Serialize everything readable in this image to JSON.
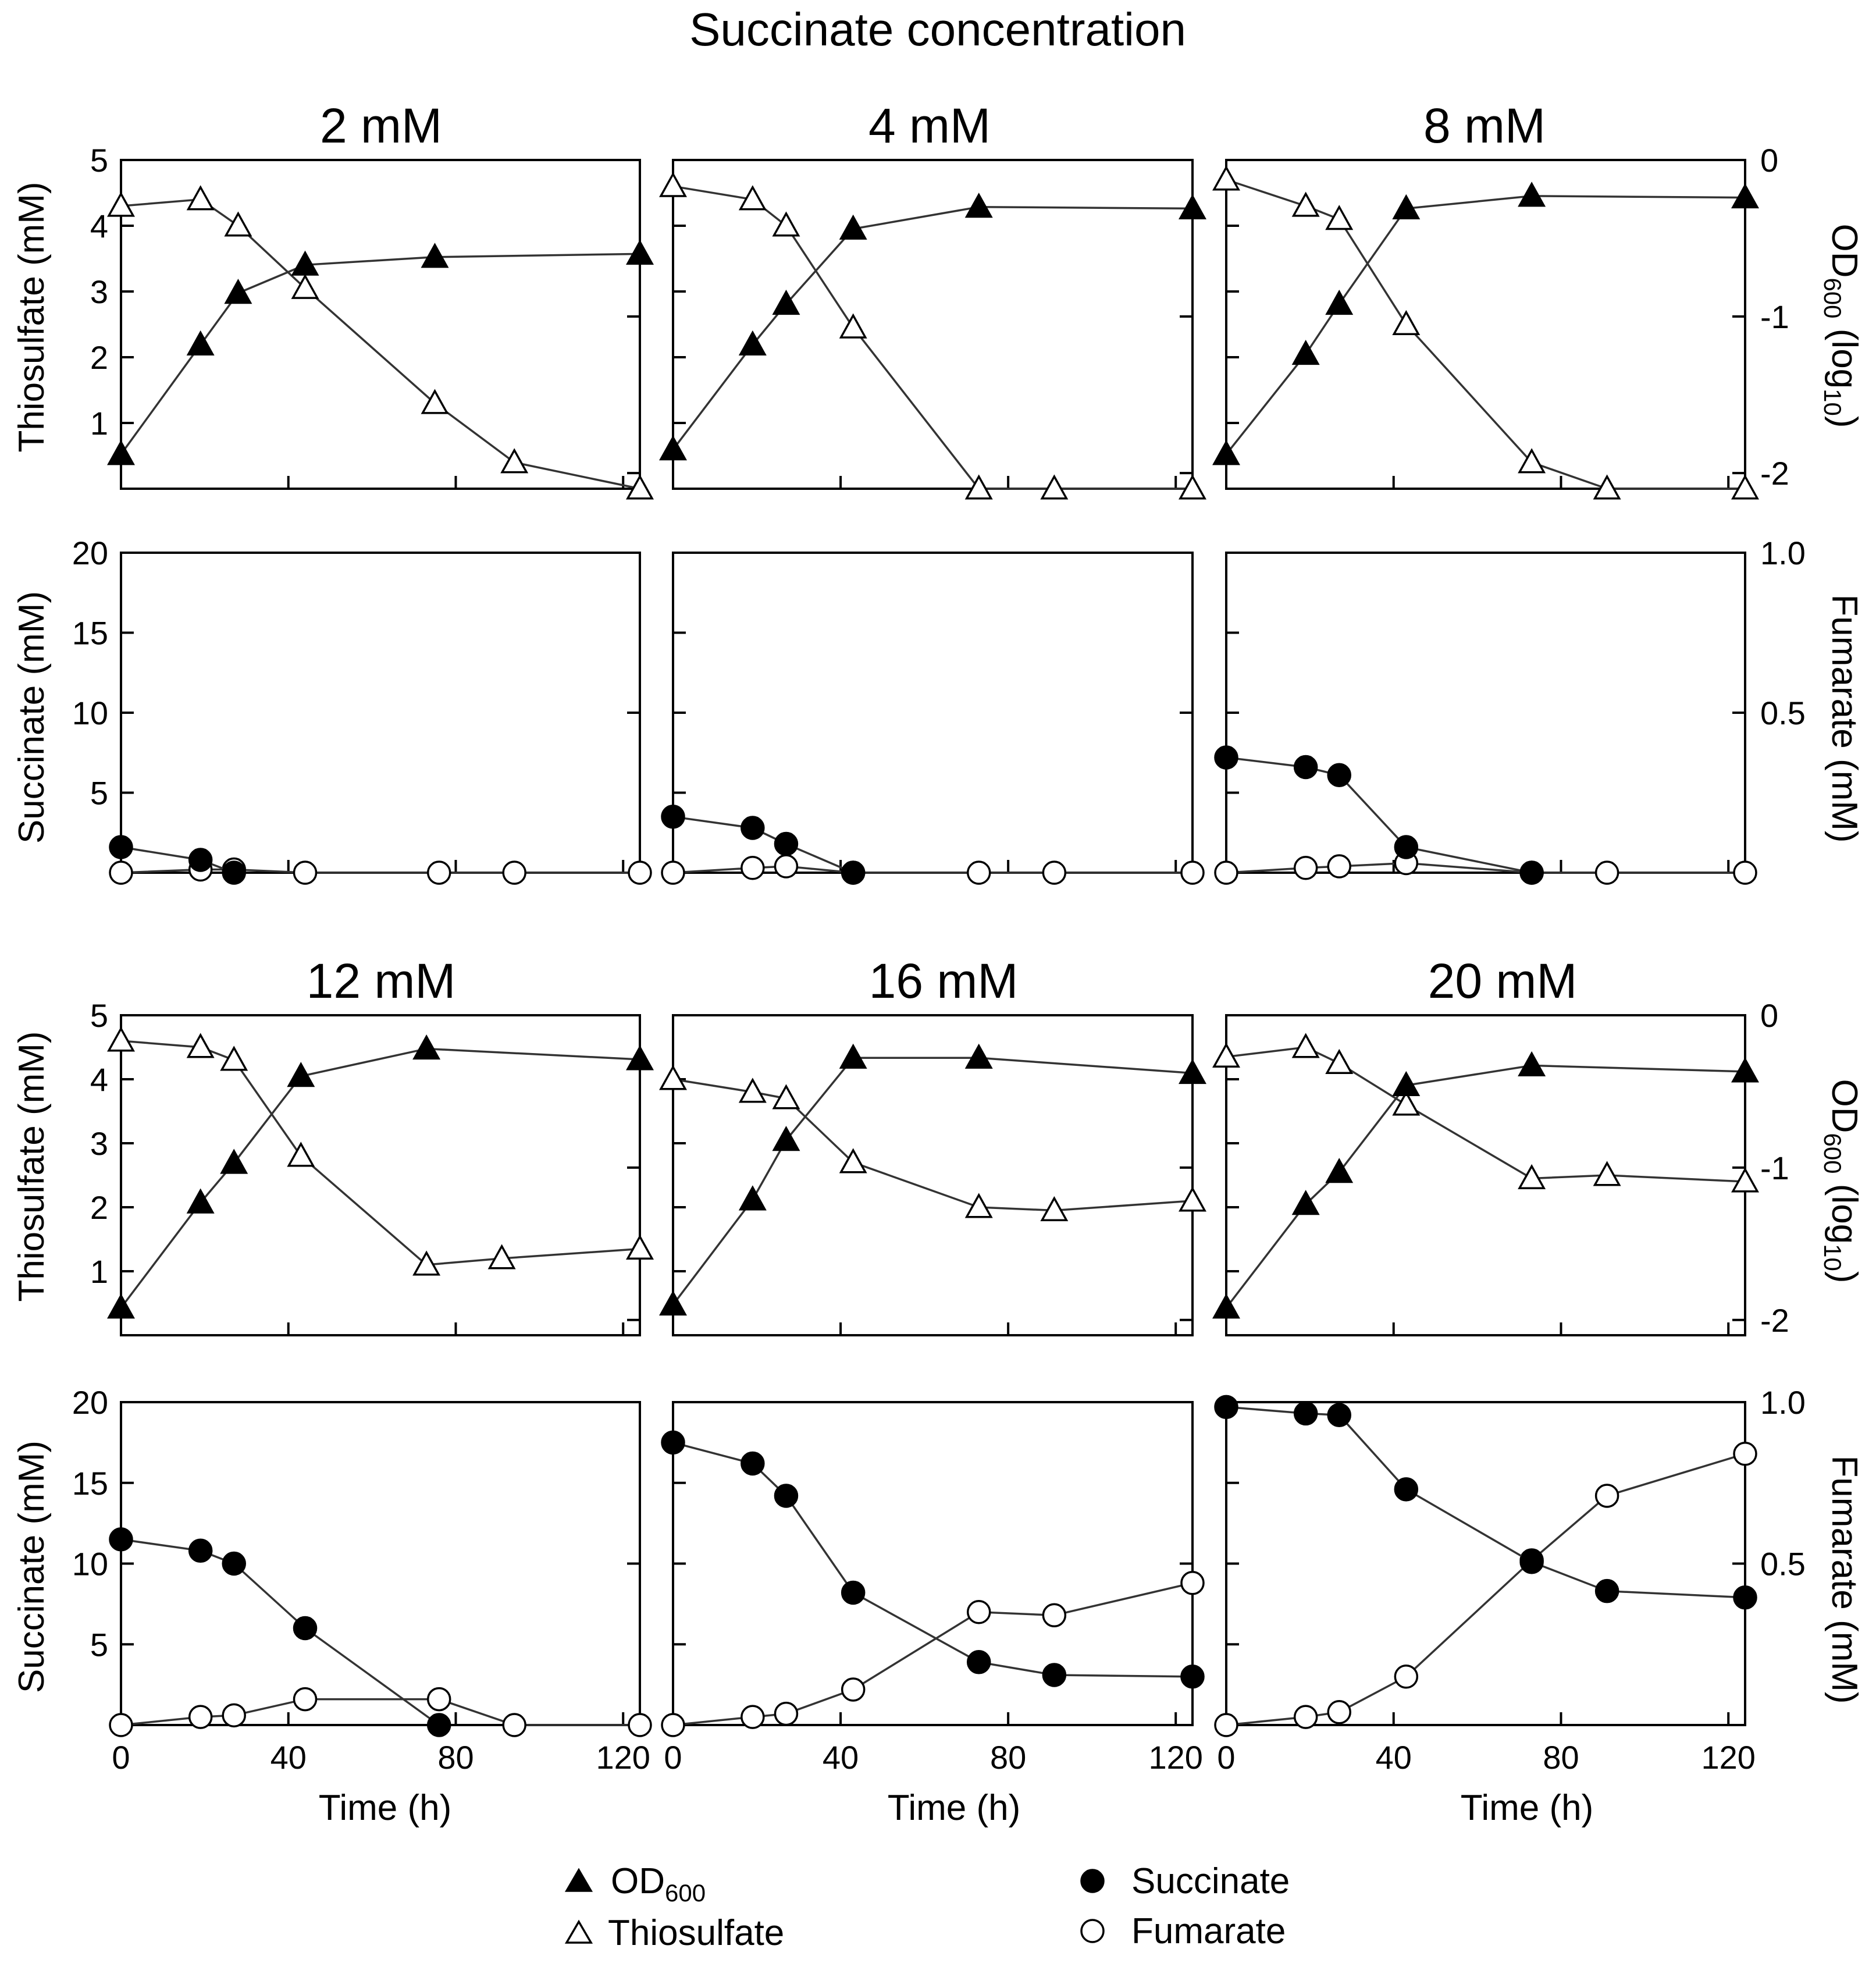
{
  "chart_data": {
    "type": "line",
    "title": "Succinate concentration",
    "panel_titles": [
      "2 mM",
      "4 mM",
      "8 mM",
      "12 mM",
      "16 mM",
      "20 mM"
    ],
    "xlabel": "Time (h)",
    "xlim": [
      0,
      124
    ],
    "xticks": [
      0,
      40,
      80,
      120
    ],
    "top_axes": {
      "left_label": "Thiosulfate (mM)",
      "left_ylim": [
        0,
        5
      ],
      "left_ticks": [
        1,
        2,
        3,
        4,
        5
      ],
      "right_label_main": "OD",
      "right_label_sub": "600",
      "right_label_paren": " (log",
      "right_label_paren_sub": "10",
      "right_label_close": ")",
      "right_ylim": [
        -2.1,
        0
      ],
      "right_ticks": [
        0,
        -1,
        -2
      ],
      "right_tick_labels": [
        "0",
        "-1",
        "-2"
      ]
    },
    "bottom_axes": {
      "left_label": "Succinate (mM)",
      "left_ylim": [
        0,
        20
      ],
      "left_ticks": [
        5,
        10,
        15,
        20
      ],
      "right_label": "Fumarate (mM)",
      "right_ylim": [
        0,
        1.0
      ],
      "right_ticks": [
        0.5,
        1.0
      ],
      "right_tick_labels": [
        "0.5",
        "1.0"
      ]
    },
    "panels": [
      {
        "succinate_mM": "2 mM",
        "od600": {
          "name": "OD600",
          "x": [
            0,
            19,
            28,
            44,
            75,
            124
          ],
          "y": [
            -1.88,
            -1.18,
            -0.85,
            -0.67,
            -0.62,
            -0.6
          ]
        },
        "thiosulfate": {
          "name": "Thiosulfate",
          "x": [
            0,
            19,
            28,
            44,
            75,
            94,
            124
          ],
          "y": [
            4.3,
            4.4,
            4.0,
            3.05,
            1.3,
            0.4,
            0.0
          ]
        },
        "succinate": {
          "name": "Succinate",
          "x": [
            0,
            19,
            27
          ],
          "y": [
            1.6,
            0.8,
            0.0
          ]
        },
        "fumarate": {
          "name": "Fumarate",
          "x": [
            0,
            19,
            27,
            44,
            76,
            94,
            124
          ],
          "y": [
            0.0,
            0.01,
            0.01,
            0.0,
            0.0,
            0.0,
            0.0
          ]
        }
      },
      {
        "succinate_mM": "4 mM",
        "od600": {
          "name": "OD600",
          "x": [
            0,
            19,
            27,
            43,
            73,
            124
          ],
          "y": [
            -1.85,
            -1.18,
            -0.92,
            -0.44,
            -0.3,
            -0.31
          ]
        },
        "thiosulfate": {
          "name": "Thiosulfate",
          "x": [
            0,
            19,
            27,
            43,
            73,
            91,
            124
          ],
          "y": [
            4.6,
            4.4,
            4.0,
            2.45,
            0.0,
            0.0,
            0.0
          ]
        },
        "succinate": {
          "name": "Succinate",
          "x": [
            0,
            19,
            27,
            43
          ],
          "y": [
            3.5,
            2.8,
            1.8,
            0.0
          ]
        },
        "fumarate": {
          "name": "Fumarate",
          "x": [
            0,
            19,
            27,
            43,
            73,
            91,
            124
          ],
          "y": [
            0.0,
            0.015,
            0.02,
            0.0,
            0.0,
            0.0,
            0.0
          ]
        }
      },
      {
        "succinate_mM": "8 mM",
        "od600": {
          "name": "OD600",
          "x": [
            0,
            19,
            27,
            43,
            73,
            124
          ],
          "y": [
            -1.88,
            -1.24,
            -0.92,
            -0.31,
            -0.23,
            -0.24
          ]
        },
        "thiosulfate": {
          "name": "Thiosulfate",
          "x": [
            0,
            19,
            27,
            43,
            73,
            91,
            124
          ],
          "y": [
            4.7,
            4.3,
            4.1,
            2.5,
            0.4,
            0.0,
            0.0
          ]
        },
        "succinate": {
          "name": "Succinate",
          "x": [
            0,
            19,
            27,
            43,
            73
          ],
          "y": [
            7.2,
            6.6,
            6.1,
            1.6,
            0.0
          ]
        },
        "fumarate": {
          "name": "Fumarate",
          "x": [
            0,
            19,
            27,
            43,
            73,
            91,
            124
          ],
          "y": [
            0.0,
            0.015,
            0.02,
            0.03,
            0.0,
            0.0,
            0.0
          ]
        }
      },
      {
        "succinate_mM": "12 mM",
        "od600": {
          "name": "OD600",
          "x": [
            0,
            19,
            27,
            43,
            73,
            124
          ],
          "y": [
            -1.92,
            -1.23,
            -0.97,
            -0.4,
            -0.22,
            -0.29
          ]
        },
        "thiosulfate": {
          "name": "Thiosulfate",
          "x": [
            0,
            19,
            27,
            43,
            73,
            91,
            124
          ],
          "y": [
            4.6,
            4.5,
            4.3,
            2.8,
            1.1,
            1.2,
            1.35
          ]
        },
        "succinate": {
          "name": "Succinate",
          "x": [
            0,
            19,
            27,
            44,
            76
          ],
          "y": [
            11.5,
            10.8,
            10.0,
            6.0,
            0.0
          ]
        },
        "fumarate": {
          "name": "Fumarate",
          "x": [
            0,
            19,
            27,
            44,
            76,
            94,
            124
          ],
          "y": [
            0.0,
            0.025,
            0.03,
            0.08,
            0.08,
            0.0,
            0.0
          ]
        }
      },
      {
        "succinate_mM": "16 mM",
        "od600": {
          "name": "OD600",
          "x": [
            0,
            19,
            27,
            43,
            73,
            124
          ],
          "y": [
            -1.9,
            -1.21,
            -0.82,
            -0.28,
            -0.28,
            -0.38
          ]
        },
        "thiosulfate": {
          "name": "Thiosulfate",
          "x": [
            0,
            19,
            27,
            43,
            73,
            91,
            124
          ],
          "y": [
            4.0,
            3.8,
            3.7,
            2.7,
            2.0,
            1.95,
            2.1
          ]
        },
        "succinate": {
          "name": "Succinate",
          "x": [
            0,
            19,
            27,
            43,
            73,
            91,
            124
          ],
          "y": [
            17.5,
            16.2,
            14.2,
            8.2,
            3.9,
            3.1,
            3.0
          ]
        },
        "fumarate": {
          "name": "Fumarate",
          "x": [
            0,
            19,
            27,
            43,
            73,
            91,
            124
          ],
          "y": [
            0.0,
            0.025,
            0.035,
            0.11,
            0.35,
            0.34,
            0.44
          ]
        }
      },
      {
        "succinate_mM": "20 mM",
        "od600": {
          "name": "OD600",
          "x": [
            0,
            19,
            27,
            43,
            73,
            124
          ],
          "y": [
            -1.92,
            -1.24,
            -1.03,
            -0.46,
            -0.33,
            -0.37
          ]
        },
        "thiosulfate": {
          "name": "Thiosulfate",
          "x": [
            0,
            19,
            27,
            43,
            73,
            91,
            124
          ],
          "y": [
            4.35,
            4.5,
            4.25,
            3.6,
            2.45,
            2.5,
            2.4
          ]
        },
        "succinate": {
          "name": "Succinate",
          "x": [
            0,
            19,
            27,
            43,
            73,
            91,
            124
          ],
          "y": [
            19.7,
            19.3,
            19.2,
            14.6,
            10.1,
            8.3,
            7.9
          ]
        },
        "fumarate": {
          "name": "Fumarate",
          "x": [
            0,
            19,
            27,
            43,
            73,
            91,
            124
          ],
          "y": [
            0.0,
            0.025,
            0.04,
            0.15,
            0.51,
            0.71,
            0.84
          ]
        }
      }
    ],
    "legend": {
      "od600_main": "OD",
      "od600_sub": "600",
      "thiosulfate": "Thiosulfate",
      "succinate": "Succinate",
      "fumarate": "Fumarate"
    }
  }
}
